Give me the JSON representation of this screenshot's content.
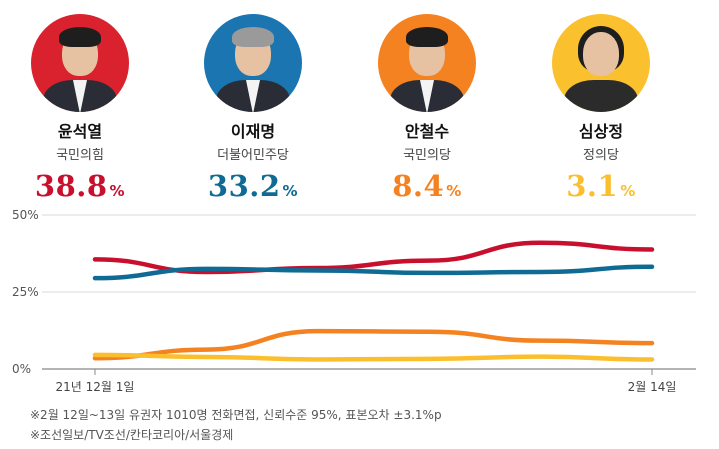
{
  "colors": {
    "yoon": "#c8102e",
    "lee": "#0f6b94",
    "ahn": "#f58220",
    "sim": "#fbbf2e"
  },
  "candidates": [
    {
      "name": "윤석열",
      "party": "국민의힘",
      "pct": "38.8",
      "unit": "%",
      "color": "#c8102e",
      "photo_bg": "#d9222e",
      "icon": "candidate-photo"
    },
    {
      "name": "이재명",
      "party": "더불어민주당",
      "pct": "33.2",
      "unit": "%",
      "color": "#0f6b94",
      "photo_bg": "#1a75b0",
      "icon": "candidate-photo"
    },
    {
      "name": "안철수",
      "party": "국민의당",
      "pct": "8.4",
      "unit": "%",
      "color": "#f58220",
      "photo_bg": "#f58220",
      "icon": "candidate-photo"
    },
    {
      "name": "심상정",
      "party": "정의당",
      "pct": "3.1",
      "unit": "%",
      "color": "#fbbf2e",
      "photo_bg": "#fbc02d",
      "icon": "candidate-photo"
    }
  ],
  "chart_data": {
    "type": "line",
    "ylim": [
      0,
      50
    ],
    "yticks": [
      "0%",
      "25%",
      "50%"
    ],
    "x_labels": [
      "21년 12월 1일",
      "2월 14일"
    ],
    "grid": true,
    "series": [
      {
        "name": "윤석열",
        "color": "#c8102e",
        "values": [
          35.6,
          31.5,
          32.8,
          35.2,
          41.0,
          38.8
        ]
      },
      {
        "name": "이재명",
        "color": "#0f6b94",
        "values": [
          29.5,
          32.5,
          32.0,
          31.2,
          31.5,
          33.2
        ]
      },
      {
        "name": "안철수",
        "color": "#f58220",
        "values": [
          3.5,
          6.3,
          12.3,
          12.1,
          9.2,
          8.4
        ]
      },
      {
        "name": "심상정",
        "color": "#fbbf2e",
        "values": [
          4.6,
          3.9,
          3.1,
          3.3,
          4.0,
          3.1
        ]
      }
    ]
  },
  "footnotes": [
    "※2월 12일~13일 유권자 1010명 전화면접, 신뢰수준 95%, 표본오차 ±3.1%p",
    "※조선일보/TV조선/칸타코리아/서울경제"
  ]
}
